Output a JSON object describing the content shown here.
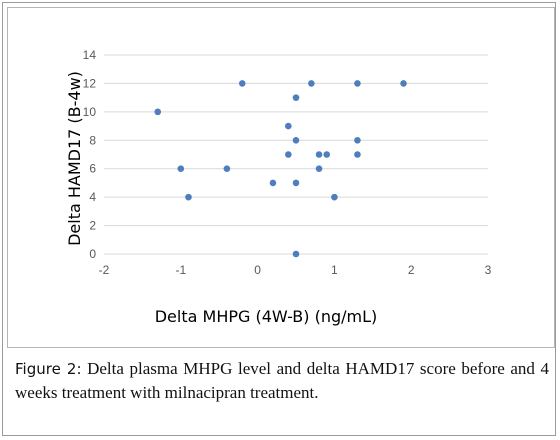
{
  "caption": {
    "label": "Figure 2:",
    "text": "Delta plasma MHPG level and delta HAMD17 score before and 4 weeks treatment with milnacipran treatment."
  },
  "chart_data": {
    "type": "scatter",
    "xlabel": "Delta MHPG (4W-B) (ng/mL)",
    "ylabel": "Delta HAMD17 (B-4w)",
    "xlim": [
      -2,
      3
    ],
    "ylim": [
      0,
      14
    ],
    "x_ticks": [
      "-2",
      "-1",
      "0",
      "1",
      "2",
      "3"
    ],
    "y_ticks": [
      "0",
      "2",
      "4",
      "6",
      "8",
      "10",
      "12",
      "14"
    ],
    "grid": "horizontal",
    "legend": "none",
    "marker_color": "#4f7ebf",
    "points": [
      {
        "x": -1.3,
        "y": 10
      },
      {
        "x": -1.0,
        "y": 6
      },
      {
        "x": -0.9,
        "y": 4
      },
      {
        "x": -0.4,
        "y": 6
      },
      {
        "x": -0.2,
        "y": 12
      },
      {
        "x": 0.2,
        "y": 5
      },
      {
        "x": 0.4,
        "y": 9
      },
      {
        "x": 0.4,
        "y": 7
      },
      {
        "x": 0.5,
        "y": 11
      },
      {
        "x": 0.5,
        "y": 8
      },
      {
        "x": 0.5,
        "y": 5
      },
      {
        "x": 0.5,
        "y": 0
      },
      {
        "x": 0.7,
        "y": 12
      },
      {
        "x": 0.8,
        "y": 7
      },
      {
        "x": 0.8,
        "y": 6
      },
      {
        "x": 0.9,
        "y": 7
      },
      {
        "x": 1.0,
        "y": 4
      },
      {
        "x": 1.3,
        "y": 12
      },
      {
        "x": 1.3,
        "y": 8
      },
      {
        "x": 1.3,
        "y": 7
      },
      {
        "x": 1.9,
        "y": 12
      }
    ]
  }
}
